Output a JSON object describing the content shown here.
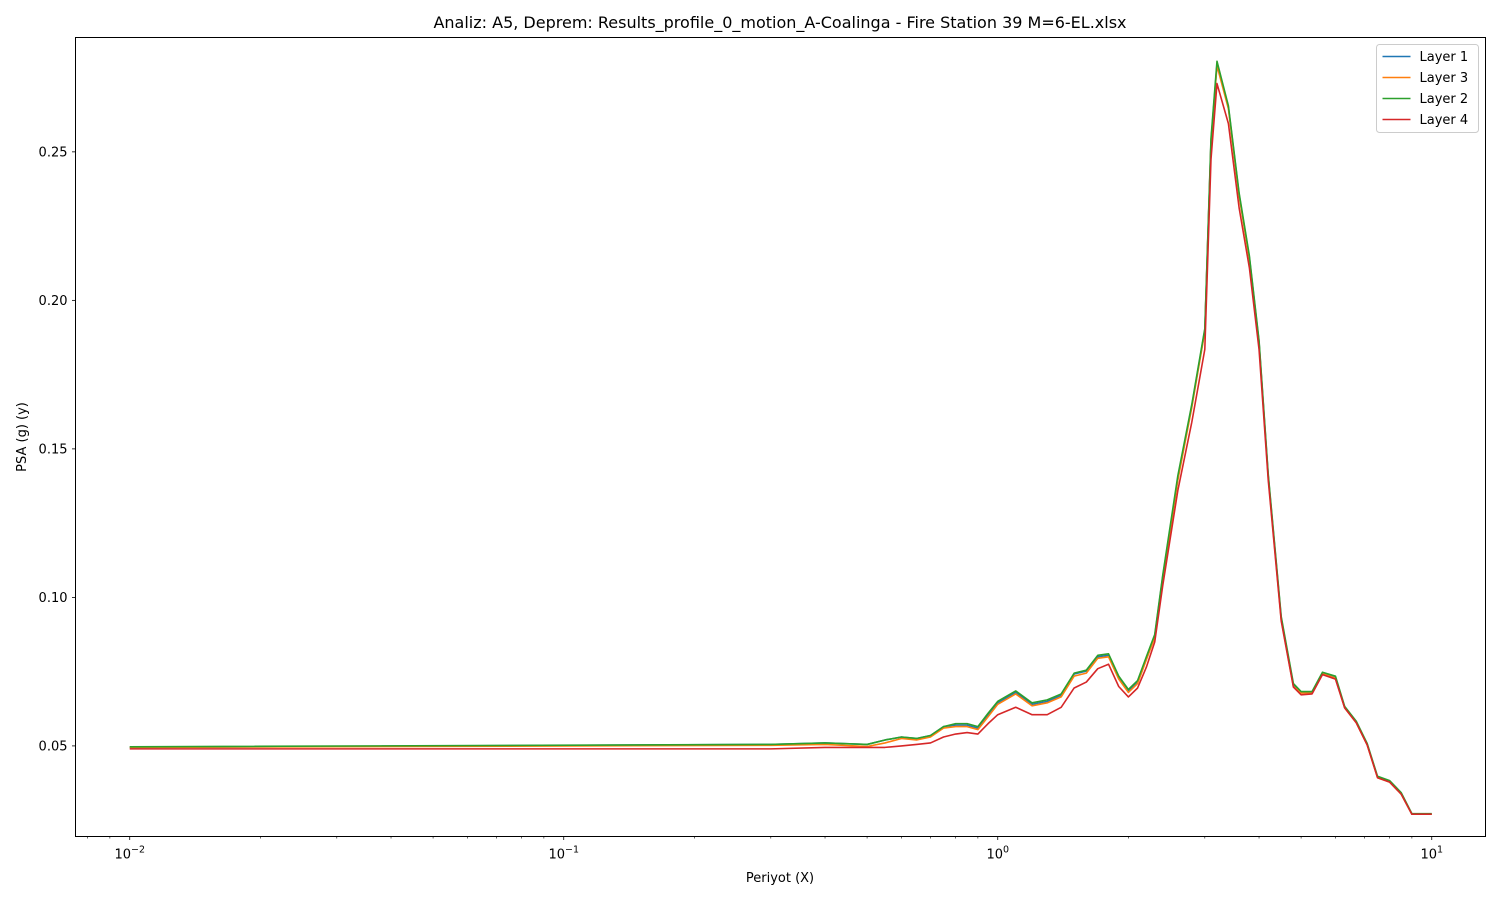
{
  "chart_data": {
    "type": "line",
    "title": "Analiz: A5, Deprem: Results_profile_0_motion_A-Coalinga - Fire Station 39 M=6-EL.xlsx",
    "xlabel": "Periyot (X)",
    "ylabel": "PSA (g) (y)",
    "xscale": "log",
    "xlim": [
      0.0075,
      13.3
    ],
    "ylim": [
      0.0195,
      0.2885
    ],
    "x_ticks": [
      {
        "value": 0.01,
        "base": "10",
        "exp": "−2"
      },
      {
        "value": 0.1,
        "base": "10",
        "exp": "−1"
      },
      {
        "value": 1,
        "base": "10",
        "exp": "0"
      },
      {
        "value": 10,
        "base": "10",
        "exp": "1"
      }
    ],
    "y_ticks": [
      "0.05",
      "0.10",
      "0.15",
      "0.20",
      "0.25"
    ],
    "grid": false,
    "legend_position": "top-right",
    "x": [
      0.01,
      0.3,
      0.4,
      0.5,
      0.55,
      0.6,
      0.65,
      0.7,
      0.75,
      0.8,
      0.85,
      0.9,
      0.95,
      1.0,
      1.1,
      1.2,
      1.3,
      1.4,
      1.5,
      1.6,
      1.7,
      1.8,
      1.9,
      2.0,
      2.1,
      2.2,
      2.3,
      2.4,
      2.6,
      2.8,
      3.0,
      3.1,
      3.2,
      3.4,
      3.6,
      3.8,
      4.0,
      4.2,
      4.5,
      4.8,
      5.0,
      5.3,
      5.6,
      6.0,
      6.3,
      6.7,
      7.1,
      7.5,
      8.0,
      8.5,
      9.0,
      9.5,
      10.0
    ],
    "series": [
      {
        "name": "Layer 1",
        "color": "#1f77b4",
        "values": [
          0.0495,
          0.0505,
          0.051,
          0.0505,
          0.052,
          0.053,
          0.0525,
          0.0535,
          0.0565,
          0.057,
          0.057,
          0.056,
          0.0605,
          0.0645,
          0.068,
          0.064,
          0.065,
          0.067,
          0.0742,
          0.0752,
          0.08,
          0.0805,
          0.073,
          0.0685,
          0.0715,
          0.0795,
          0.087,
          0.107,
          0.14,
          0.1645,
          0.19,
          0.2535,
          0.2795,
          0.265,
          0.2355,
          0.2145,
          0.186,
          0.141,
          0.093,
          0.0705,
          0.068,
          0.068,
          0.0745,
          0.073,
          0.063,
          0.058,
          0.0505,
          0.0395,
          0.038,
          0.034,
          0.027,
          0.027,
          0.027
        ]
      },
      {
        "name": "Layer 3",
        "color": "#ff7f0e",
        "values": [
          0.0495,
          0.0502,
          0.0505,
          0.0498,
          0.051,
          0.0525,
          0.052,
          0.053,
          0.056,
          0.0565,
          0.0565,
          0.0555,
          0.0598,
          0.064,
          0.0675,
          0.0635,
          0.0645,
          0.0665,
          0.0735,
          0.0745,
          0.0795,
          0.08,
          0.0725,
          0.068,
          0.071,
          0.079,
          0.0865,
          0.1065,
          0.1395,
          0.164,
          0.1895,
          0.253,
          0.279,
          0.2645,
          0.235,
          0.214,
          0.1855,
          0.1405,
          0.0925,
          0.07,
          0.0678,
          0.0678,
          0.0743,
          0.0728,
          0.0628,
          0.0578,
          0.0503,
          0.0393,
          0.0378,
          0.0338,
          0.027,
          0.027,
          0.027
        ]
      },
      {
        "name": "Layer 2",
        "color": "#2ca02c",
        "values": [
          0.0497,
          0.0505,
          0.051,
          0.0505,
          0.052,
          0.053,
          0.0525,
          0.0535,
          0.0565,
          0.0575,
          0.0575,
          0.0565,
          0.061,
          0.065,
          0.0685,
          0.0645,
          0.0655,
          0.0675,
          0.0745,
          0.0755,
          0.0805,
          0.081,
          0.0735,
          0.069,
          0.072,
          0.08,
          0.0875,
          0.1075,
          0.141,
          0.165,
          0.1905,
          0.2545,
          0.2805,
          0.2655,
          0.236,
          0.215,
          0.1865,
          0.1415,
          0.0935,
          0.071,
          0.0683,
          0.0683,
          0.0748,
          0.0735,
          0.0633,
          0.0583,
          0.0508,
          0.0398,
          0.0383,
          0.0343,
          0.0272,
          0.0272,
          0.0272
        ]
      },
      {
        "name": "Layer 4",
        "color": "#d62728",
        "values": [
          0.049,
          0.049,
          0.0495,
          0.0495,
          0.0495,
          0.05,
          0.0505,
          0.051,
          0.053,
          0.054,
          0.0545,
          0.054,
          0.0575,
          0.0605,
          0.063,
          0.0605,
          0.0605,
          0.063,
          0.0695,
          0.0715,
          0.076,
          0.0775,
          0.07,
          0.0665,
          0.0695,
          0.0765,
          0.085,
          0.104,
          0.136,
          0.159,
          0.1835,
          0.2475,
          0.273,
          0.2595,
          0.231,
          0.211,
          0.1835,
          0.1395,
          0.092,
          0.0698,
          0.0672,
          0.0675,
          0.074,
          0.0725,
          0.0628,
          0.0578,
          0.0503,
          0.0393,
          0.0378,
          0.0338,
          0.027,
          0.027,
          0.027
        ]
      }
    ]
  }
}
